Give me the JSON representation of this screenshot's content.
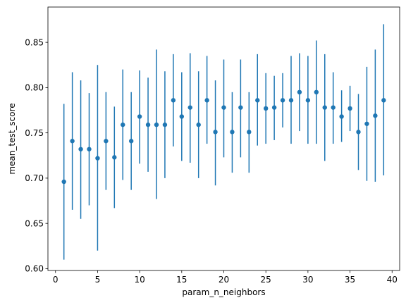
{
  "chart_data": {
    "type": "scatter",
    "xlabel": "param_n_neighbors",
    "ylabel": "mean_test_score",
    "xlim": [
      -0.9,
      40.9
    ],
    "ylim": [
      0.598,
      0.889
    ],
    "xticks": [
      0,
      5,
      10,
      15,
      20,
      25,
      30,
      35,
      40
    ],
    "yticks": [
      0.6,
      0.65,
      0.7,
      0.75,
      0.8,
      0.85
    ],
    "ytick_labels": [
      "0.60",
      "0.65",
      "0.70",
      "0.75",
      "0.80",
      "0.85"
    ],
    "grid": false,
    "legend": "none",
    "color": "#1f77b4",
    "points": [
      {
        "x": 1,
        "y": 0.696,
        "low": 0.61,
        "high": 0.782
      },
      {
        "x": 2,
        "y": 0.741,
        "low": 0.665,
        "high": 0.817
      },
      {
        "x": 3,
        "y": 0.732,
        "low": 0.655,
        "high": 0.808
      },
      {
        "x": 4,
        "y": 0.732,
        "low": 0.67,
        "high": 0.794
      },
      {
        "x": 5,
        "y": 0.722,
        "low": 0.62,
        "high": 0.825
      },
      {
        "x": 6,
        "y": 0.741,
        "low": 0.687,
        "high": 0.795
      },
      {
        "x": 7,
        "y": 0.723,
        "low": 0.667,
        "high": 0.779
      },
      {
        "x": 8,
        "y": 0.759,
        "low": 0.698,
        "high": 0.82
      },
      {
        "x": 9,
        "y": 0.741,
        "low": 0.687,
        "high": 0.795
      },
      {
        "x": 10,
        "y": 0.768,
        "low": 0.716,
        "high": 0.819
      },
      {
        "x": 11,
        "y": 0.759,
        "low": 0.707,
        "high": 0.811
      },
      {
        "x": 12,
        "y": 0.759,
        "low": 0.677,
        "high": 0.842
      },
      {
        "x": 13,
        "y": 0.759,
        "low": 0.7,
        "high": 0.818
      },
      {
        "x": 14,
        "y": 0.786,
        "low": 0.735,
        "high": 0.837
      },
      {
        "x": 15,
        "y": 0.768,
        "low": 0.719,
        "high": 0.817
      },
      {
        "x": 16,
        "y": 0.778,
        "low": 0.717,
        "high": 0.838
      },
      {
        "x": 17,
        "y": 0.759,
        "low": 0.7,
        "high": 0.818
      },
      {
        "x": 18,
        "y": 0.786,
        "low": 0.738,
        "high": 0.835
      },
      {
        "x": 19,
        "y": 0.751,
        "low": 0.692,
        "high": 0.808
      },
      {
        "x": 20,
        "y": 0.778,
        "low": 0.723,
        "high": 0.831
      },
      {
        "x": 21,
        "y": 0.751,
        "low": 0.706,
        "high": 0.795
      },
      {
        "x": 22,
        "y": 0.778,
        "low": 0.723,
        "high": 0.831
      },
      {
        "x": 23,
        "y": 0.751,
        "low": 0.706,
        "high": 0.795
      },
      {
        "x": 24,
        "y": 0.786,
        "low": 0.736,
        "high": 0.837
      },
      {
        "x": 25,
        "y": 0.777,
        "low": 0.738,
        "high": 0.816
      },
      {
        "x": 26,
        "y": 0.778,
        "low": 0.742,
        "high": 0.813
      },
      {
        "x": 27,
        "y": 0.786,
        "low": 0.756,
        "high": 0.816
      },
      {
        "x": 28,
        "y": 0.786,
        "low": 0.738,
        "high": 0.835
      },
      {
        "x": 29,
        "y": 0.795,
        "low": 0.752,
        "high": 0.838
      },
      {
        "x": 30,
        "y": 0.786,
        "low": 0.738,
        "high": 0.835
      },
      {
        "x": 31,
        "y": 0.795,
        "low": 0.738,
        "high": 0.852
      },
      {
        "x": 32,
        "y": 0.778,
        "low": 0.719,
        "high": 0.837
      },
      {
        "x": 33,
        "y": 0.778,
        "low": 0.738,
        "high": 0.817
      },
      {
        "x": 34,
        "y": 0.768,
        "low": 0.74,
        "high": 0.797
      },
      {
        "x": 35,
        "y": 0.777,
        "low": 0.752,
        "high": 0.802
      },
      {
        "x": 36,
        "y": 0.751,
        "low": 0.709,
        "high": 0.793
      },
      {
        "x": 37,
        "y": 0.76,
        "low": 0.697,
        "high": 0.823
      },
      {
        "x": 38,
        "y": 0.769,
        "low": 0.696,
        "high": 0.842
      },
      {
        "x": 39,
        "y": 0.786,
        "low": 0.703,
        "high": 0.87
      }
    ]
  }
}
